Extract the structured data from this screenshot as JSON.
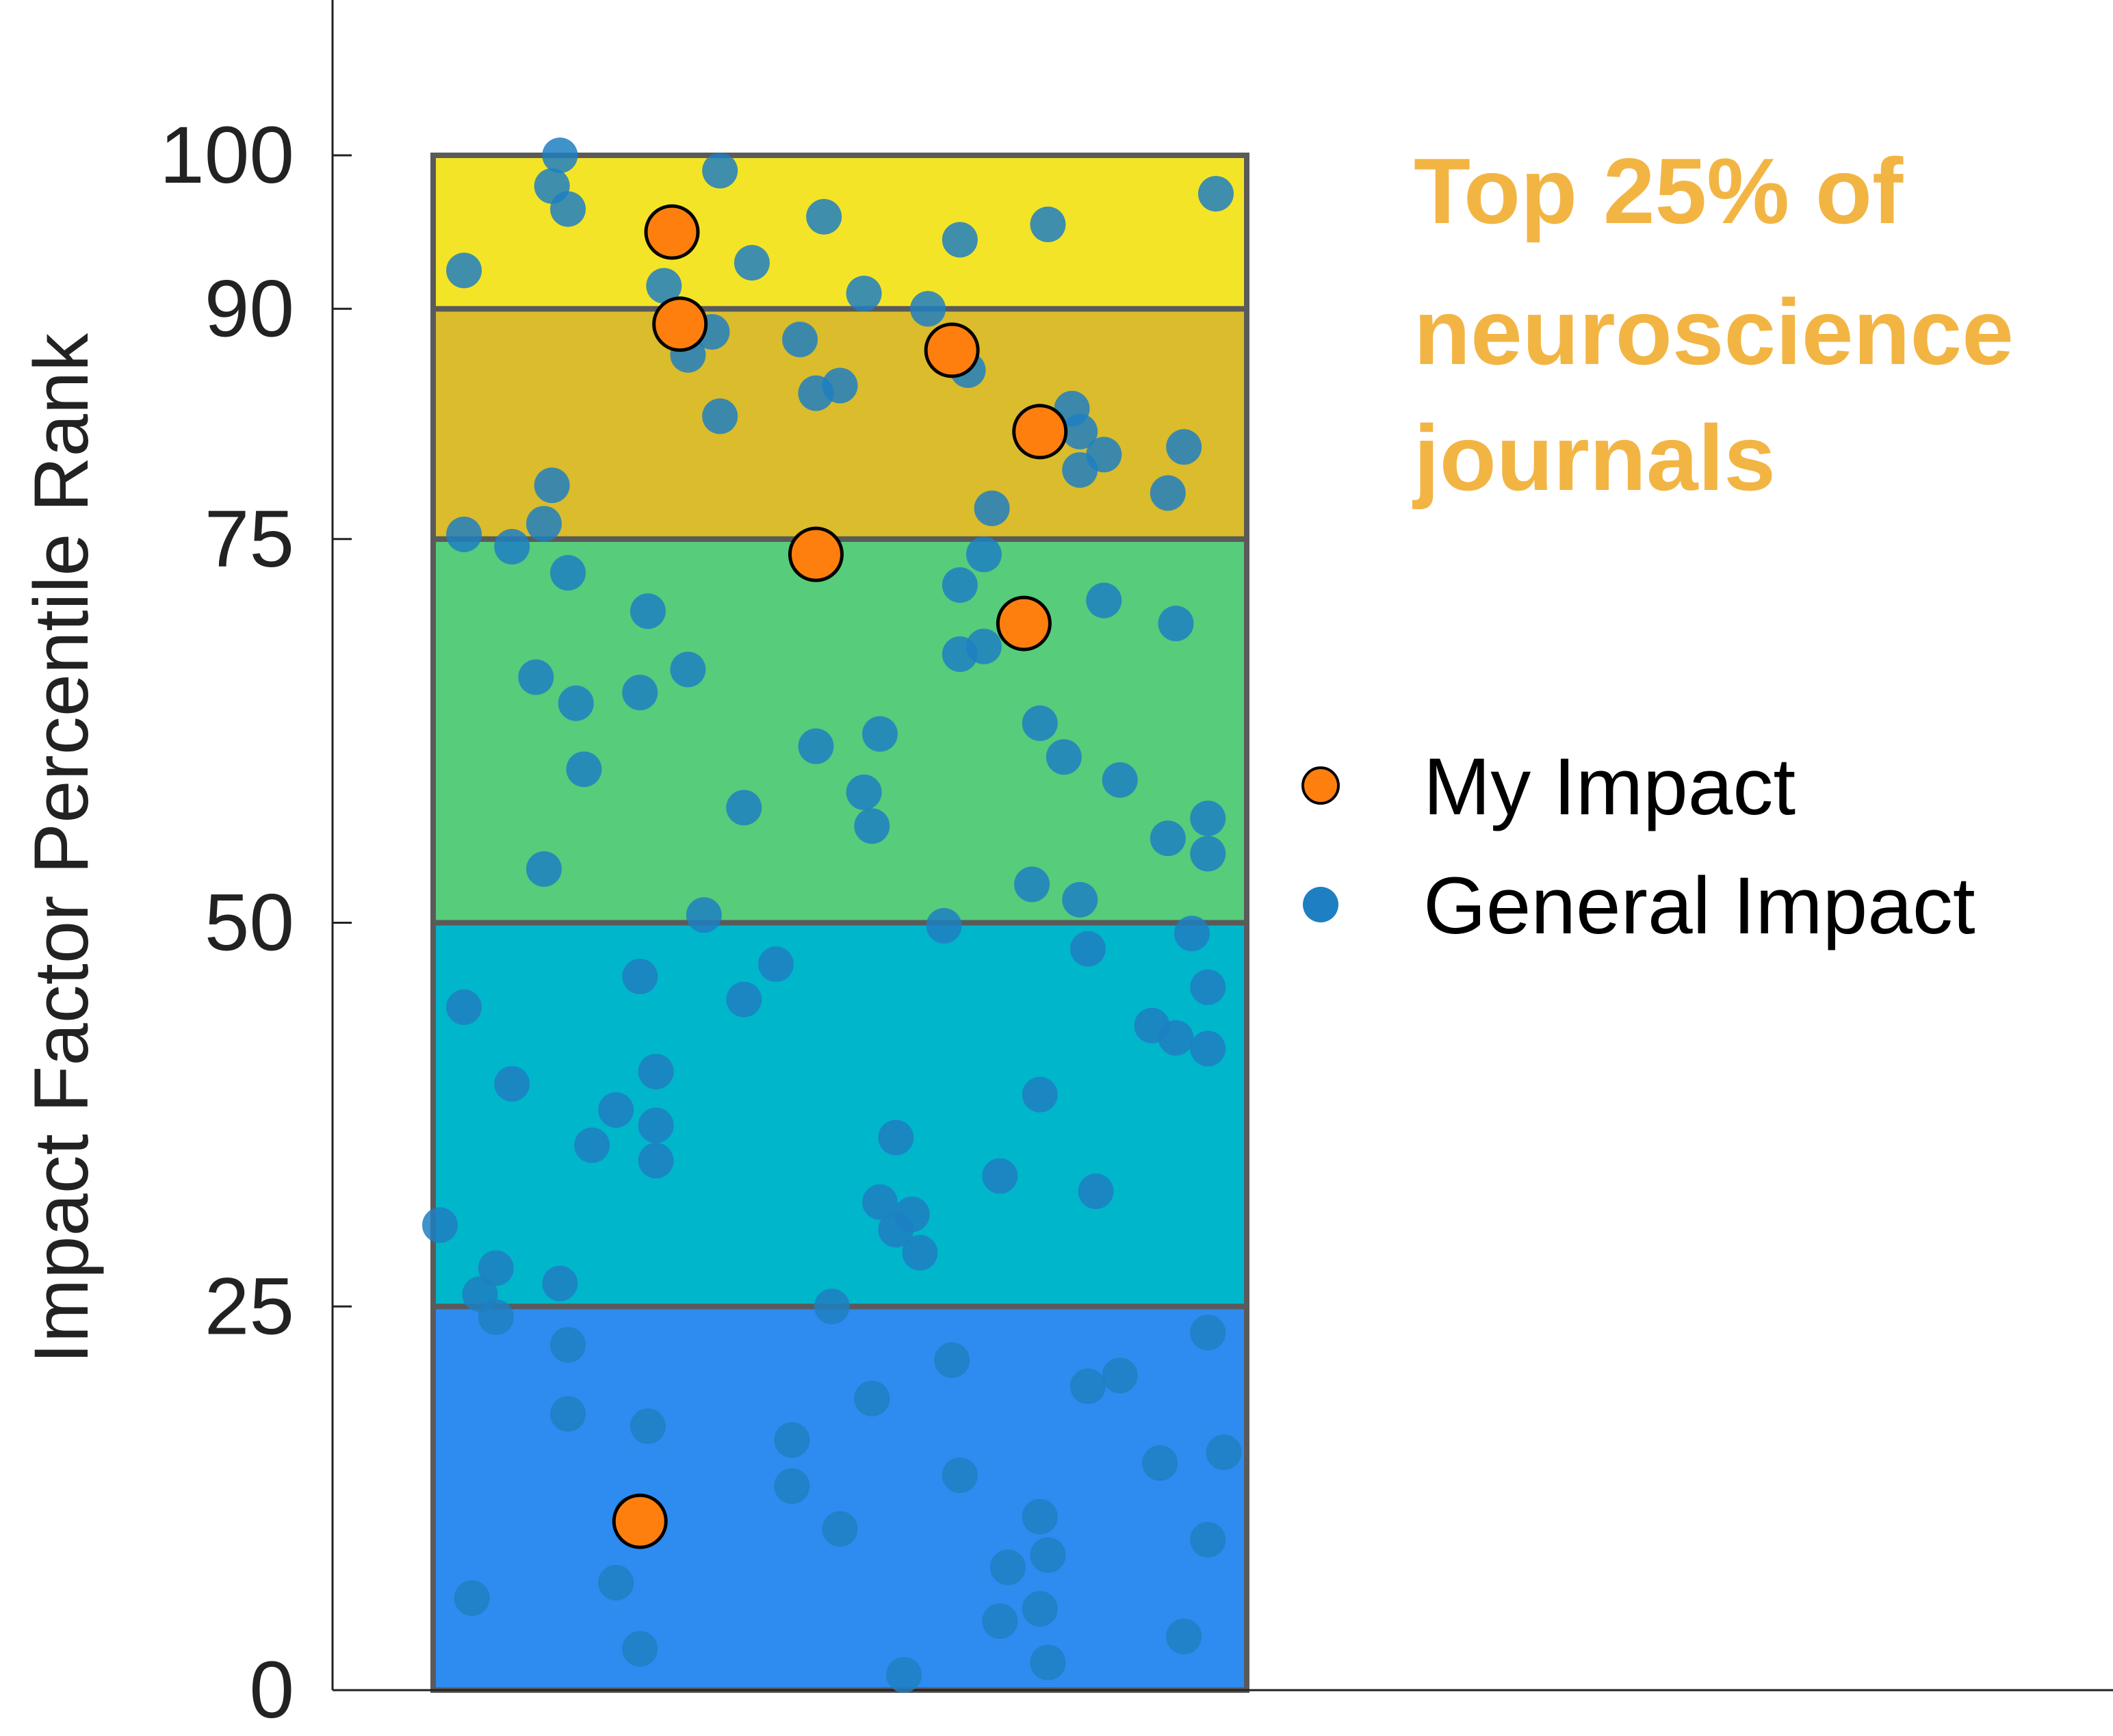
{
  "chart_data": {
    "type": "scatter",
    "title": "",
    "xlabel": "",
    "ylabel": "Impact Factor Percentile Rank",
    "ylim": [
      0,
      100
    ],
    "xlim": [
      0,
      1
    ],
    "yticks": [
      "0",
      "25",
      "50",
      "75",
      "90",
      "100"
    ],
    "ytick_values": [
      0,
      25,
      50,
      75,
      90,
      100
    ],
    "grid": false,
    "legend_placement": "right",
    "annotation": {
      "lines": [
        "Top 25% of",
        "neuroscience",
        "journals"
      ],
      "color": "#F2B544"
    },
    "bands": [
      {
        "from": 0,
        "to": 25,
        "color": "#2E8BEF"
      },
      {
        "from": 25,
        "to": 50,
        "color": "#00B6CB"
      },
      {
        "from": 50,
        "to": 75,
        "color": "#57CC7A"
      },
      {
        "from": 75,
        "to": 90,
        "color": "#DABC2C"
      },
      {
        "from": 90,
        "to": 100,
        "color": "#F4E428"
      }
    ],
    "series": [
      {
        "name": "General Impact",
        "color": "#1E7FC2",
        "points": [
          {
            "x": 0.15,
            "y": 100
          },
          {
            "x": 0.14,
            "y": 98
          },
          {
            "x": 0.16,
            "y": 96.5
          },
          {
            "x": 0.35,
            "y": 99
          },
          {
            "x": 0.97,
            "y": 97.5
          },
          {
            "x": 0.48,
            "y": 96
          },
          {
            "x": 0.65,
            "y": 94.5
          },
          {
            "x": 0.76,
            "y": 95.5
          },
          {
            "x": 0.03,
            "y": 92.5
          },
          {
            "x": 0.39,
            "y": 93
          },
          {
            "x": 0.28,
            "y": 91.5
          },
          {
            "x": 0.53,
            "y": 91
          },
          {
            "x": 0.61,
            "y": 90
          },
          {
            "x": 0.34,
            "y": 88.5
          },
          {
            "x": 0.45,
            "y": 88
          },
          {
            "x": 0.31,
            "y": 87
          },
          {
            "x": 0.66,
            "y": 86
          },
          {
            "x": 0.5,
            "y": 85
          },
          {
            "x": 0.47,
            "y": 84.5
          },
          {
            "x": 0.79,
            "y": 83.5
          },
          {
            "x": 0.35,
            "y": 83
          },
          {
            "x": 0.8,
            "y": 82
          },
          {
            "x": 0.83,
            "y": 80.5
          },
          {
            "x": 0.93,
            "y": 81
          },
          {
            "x": 0.8,
            "y": 79.5
          },
          {
            "x": 0.14,
            "y": 78.5
          },
          {
            "x": 0.91,
            "y": 78
          },
          {
            "x": 0.69,
            "y": 77
          },
          {
            "x": 0.13,
            "y": 76
          },
          {
            "x": 0.03,
            "y": 75.3
          },
          {
            "x": 0.09,
            "y": 74.5
          },
          {
            "x": 0.68,
            "y": 74
          },
          {
            "x": 0.16,
            "y": 72.8
          },
          {
            "x": 0.65,
            "y": 72
          },
          {
            "x": 0.83,
            "y": 71
          },
          {
            "x": 0.26,
            "y": 70.3
          },
          {
            "x": 0.92,
            "y": 69.5
          },
          {
            "x": 0.68,
            "y": 68
          },
          {
            "x": 0.65,
            "y": 67.5
          },
          {
            "x": 0.31,
            "y": 66.5
          },
          {
            "x": 0.12,
            "y": 66
          },
          {
            "x": 0.25,
            "y": 65
          },
          {
            "x": 0.17,
            "y": 64.3
          },
          {
            "x": 0.75,
            "y": 63
          },
          {
            "x": 0.55,
            "y": 62.3
          },
          {
            "x": 0.47,
            "y": 61.5
          },
          {
            "x": 0.78,
            "y": 60.8
          },
          {
            "x": 0.18,
            "y": 60
          },
          {
            "x": 0.85,
            "y": 59.3
          },
          {
            "x": 0.53,
            "y": 58.5
          },
          {
            "x": 0.38,
            "y": 57.5
          },
          {
            "x": 0.96,
            "y": 56.8
          },
          {
            "x": 0.54,
            "y": 56.3
          },
          {
            "x": 0.91,
            "y": 55.5
          },
          {
            "x": 0.96,
            "y": 54.5
          },
          {
            "x": 0.13,
            "y": 53.5
          },
          {
            "x": 0.74,
            "y": 52.5
          },
          {
            "x": 0.8,
            "y": 51.5
          },
          {
            "x": 0.33,
            "y": 50.5
          },
          {
            "x": 0.63,
            "y": 49.8
          },
          {
            "x": 0.94,
            "y": 49.3
          },
          {
            "x": 0.81,
            "y": 48.3
          },
          {
            "x": 0.42,
            "y": 47.3
          },
          {
            "x": 0.25,
            "y": 46.5
          },
          {
            "x": 0.96,
            "y": 45.8
          },
          {
            "x": 0.38,
            "y": 45
          },
          {
            "x": 0.03,
            "y": 44.5
          },
          {
            "x": 0.89,
            "y": 43.3
          },
          {
            "x": 0.92,
            "y": 42.5
          },
          {
            "x": 0.96,
            "y": 41.8
          },
          {
            "x": 0.27,
            "y": 40.3
          },
          {
            "x": 0.09,
            "y": 39.5
          },
          {
            "x": 0.75,
            "y": 38.8
          },
          {
            "x": 0.22,
            "y": 37.8
          },
          {
            "x": 0.27,
            "y": 36.8
          },
          {
            "x": 0.57,
            "y": 36
          },
          {
            "x": 0.19,
            "y": 35.5
          },
          {
            "x": 0.27,
            "y": 34.5
          },
          {
            "x": 0.7,
            "y": 33.5
          },
          {
            "x": 0.82,
            "y": 32.5
          },
          {
            "x": 0.55,
            "y": 31.8
          },
          {
            "x": 0.59,
            "y": 31
          },
          {
            "x": 0.57,
            "y": 30
          },
          {
            "x": 0.0,
            "y": 30.3
          },
          {
            "x": 0.6,
            "y": 28.5
          },
          {
            "x": 0.07,
            "y": 27.5
          },
          {
            "x": 0.15,
            "y": 26.5
          },
          {
            "x": 0.05,
            "y": 25.8
          },
          {
            "x": 0.07,
            "y": 24.3
          },
          {
            "x": 0.49,
            "y": 25
          },
          {
            "x": 0.96,
            "y": 23.3
          },
          {
            "x": 0.16,
            "y": 22.5
          },
          {
            "x": 0.64,
            "y": 21.5
          },
          {
            "x": 0.85,
            "y": 20.5
          },
          {
            "x": 0.81,
            "y": 19.8
          },
          {
            "x": 0.54,
            "y": 19
          },
          {
            "x": 0.16,
            "y": 18
          },
          {
            "x": 0.26,
            "y": 17.2
          },
          {
            "x": 0.44,
            "y": 16.3
          },
          {
            "x": 0.98,
            "y": 15.5
          },
          {
            "x": 0.9,
            "y": 14.8
          },
          {
            "x": 0.65,
            "y": 14
          },
          {
            "x": 0.44,
            "y": 13.3
          },
          {
            "x": 0.24,
            "y": 11.5
          },
          {
            "x": 0.75,
            "y": 11.3
          },
          {
            "x": 0.5,
            "y": 10.5
          },
          {
            "x": 0.96,
            "y": 9.8
          },
          {
            "x": 0.76,
            "y": 8.8
          },
          {
            "x": 0.71,
            "y": 8
          },
          {
            "x": 0.22,
            "y": 7
          },
          {
            "x": 0.04,
            "y": 6
          },
          {
            "x": 0.75,
            "y": 5.3
          },
          {
            "x": 0.7,
            "y": 4.5
          },
          {
            "x": 0.93,
            "y": 3.5
          },
          {
            "x": 0.25,
            "y": 2.7
          },
          {
            "x": 0.76,
            "y": 1.8
          },
          {
            "x": 0.58,
            "y": 1.0
          }
        ]
      },
      {
        "name": "My Impact",
        "color": "#FF7F0E",
        "points": [
          {
            "x": 0.29,
            "y": 95
          },
          {
            "x": 0.3,
            "y": 89
          },
          {
            "x": 0.64,
            "y": 87.3
          },
          {
            "x": 0.75,
            "y": 82
          },
          {
            "x": 0.47,
            "y": 74
          },
          {
            "x": 0.73,
            "y": 69.5
          },
          {
            "x": 0.25,
            "y": 11
          }
        ]
      }
    ]
  }
}
